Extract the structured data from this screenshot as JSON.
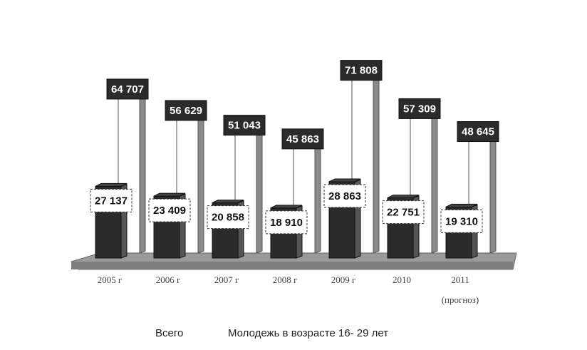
{
  "chart_data": {
    "type": "bar",
    "categories": [
      "2005 г",
      "2006 г",
      "2007 г",
      "2008 г",
      "2009 г",
      "2010",
      "2011"
    ],
    "category_notes": [
      "",
      "",
      "",
      "",
      "",
      "",
      "(прогноз)"
    ],
    "series": [
      {
        "name": "Всего",
        "values": [
          64707,
          56629,
          51043,
          45863,
          71808,
          57309,
          48645
        ],
        "color": "#ffffff"
      },
      {
        "name": "Молодежь в возрасте 16- 29 лет",
        "values": [
          27137,
          23409,
          20858,
          18910,
          28863,
          22751,
          19310
        ],
        "color": "#2b2b2b"
      }
    ],
    "value_labels": {
      "Всего": [
        "64 707",
        "56 629",
        "51 043",
        "45 863",
        "71 808",
        "57 309",
        "48 645"
      ],
      "Молодежь в возрасте 16- 29 лет": [
        "27 137",
        "23 409",
        "20 858",
        "18 910",
        "28 863",
        "22 751",
        "19 310"
      ]
    },
    "ylim": [
      0,
      75000
    ],
    "grid": false,
    "legend_position": "bottom",
    "style": "3d-cylinders"
  }
}
